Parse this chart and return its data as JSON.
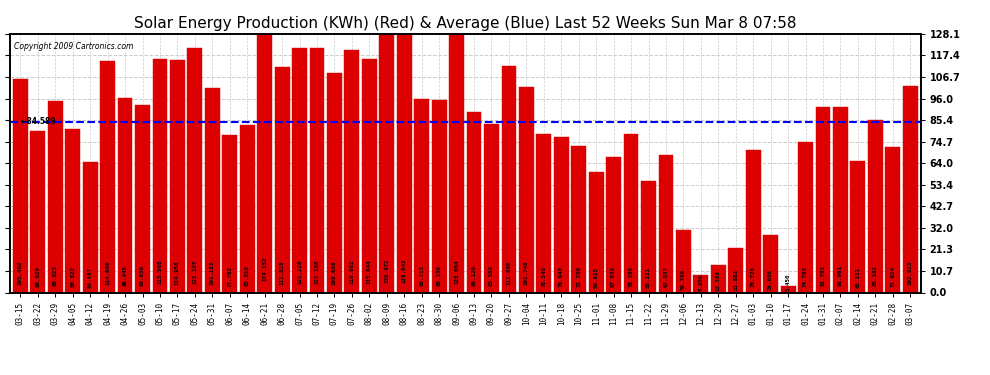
{
  "title": "Solar Energy Production (KWh) (Red) & Average (Blue) Last 52 Weeks Sun Mar 8 07:58",
  "copyright": "Copyright 2009 Cartronics.com",
  "average_value": 84.589,
  "bar_color": "#dd0000",
  "average_color": "#0000ff",
  "bg_color": "#ffffff",
  "grid_color": "#cccccc",
  "categories": [
    "03-15",
    "03-22",
    "03-29",
    "04-05",
    "04-12",
    "04-19",
    "04-26",
    "05-03",
    "05-10",
    "05-17",
    "05-24",
    "05-31",
    "06-07",
    "06-14",
    "06-21",
    "06-28",
    "07-05",
    "07-12",
    "07-19",
    "07-26",
    "08-02",
    "08-09",
    "08-16",
    "08-23",
    "08-30",
    "09-06",
    "09-13",
    "09-20",
    "09-27",
    "10-04",
    "10-11",
    "10-18",
    "10-25",
    "11-01",
    "11-08",
    "11-15",
    "11-22",
    "11-29",
    "12-06",
    "12-13",
    "12-20",
    "12-27",
    "01-03",
    "01-10",
    "01-17",
    "01-24",
    "01-31",
    "02-07",
    "02-14",
    "02-21",
    "02-28",
    "03-07"
  ],
  "values": [
    105.492,
    80.029,
    95.023,
    80.822,
    64.487,
    114.699,
    96.445,
    93.03,
    115.568,
    114.958,
    121.107,
    101.183,
    77.762,
    82.818,
    174.152,
    111.828,
    121.22,
    121.168,
    108.638,
    119.982,
    115.644,
    136.472,
    136.643,
    95.713,
    95.156,
    128.064,
    89.129,
    83.503,
    111.89,
    101.748,
    78.54,
    76.94,
    72.76,
    59.625,
    67.03,
    78.38,
    55.321,
    67.937,
    30.78,
    8.65,
    13.388,
    21.882,
    70.726,
    28.698,
    3.45,
    74.705,
    91.761,
    91.961,
    65.111,
    85.182,
    71.924,
    102.023
  ],
  "ylim": [
    0,
    128.1
  ],
  "yticks": [
    0.0,
    10.7,
    21.3,
    32.0,
    42.7,
    53.4,
    64.0,
    74.7,
    85.4,
    96.0,
    106.7,
    117.4,
    128.1
  ],
  "title_fontsize": 11,
  "tick_fontsize": 5.5,
  "value_fontsize": 4.2
}
